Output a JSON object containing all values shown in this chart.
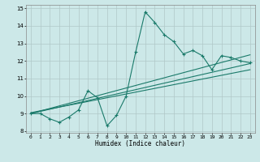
{
  "title": "",
  "xlabel": "Humidex (Indice chaleur)",
  "ylabel": "",
  "xlim": [
    -0.5,
    23.5
  ],
  "ylim": [
    7.9,
    15.2
  ],
  "yticks": [
    8,
    9,
    10,
    11,
    12,
    13,
    14,
    15
  ],
  "xticks": [
    0,
    1,
    2,
    3,
    4,
    5,
    6,
    7,
    8,
    9,
    10,
    11,
    12,
    13,
    14,
    15,
    16,
    17,
    18,
    19,
    20,
    21,
    22,
    23
  ],
  "bg_color": "#cce8e8",
  "line_color": "#1a7a6a",
  "grid_color": "#b0c8c8",
  "lines": [
    {
      "x": [
        0,
        1,
        2,
        3,
        4,
        5,
        6,
        7,
        8,
        9,
        10,
        11,
        12,
        13,
        14,
        15,
        16,
        17,
        18,
        19,
        20,
        21,
        22,
        23
      ],
      "y": [
        9.0,
        9.0,
        8.7,
        8.5,
        8.8,
        9.2,
        10.3,
        9.9,
        8.3,
        8.9,
        10.0,
        12.5,
        14.8,
        14.2,
        13.5,
        13.1,
        12.4,
        12.6,
        12.3,
        11.5,
        12.3,
        12.2,
        12.0,
        11.9
      ]
    },
    {
      "x": [
        0,
        23
      ],
      "y": [
        9.0,
        12.35
      ]
    },
    {
      "x": [
        0,
        23
      ],
      "y": [
        9.0,
        11.85
      ]
    },
    {
      "x": [
        0,
        23
      ],
      "y": [
        9.05,
        11.5
      ]
    }
  ]
}
